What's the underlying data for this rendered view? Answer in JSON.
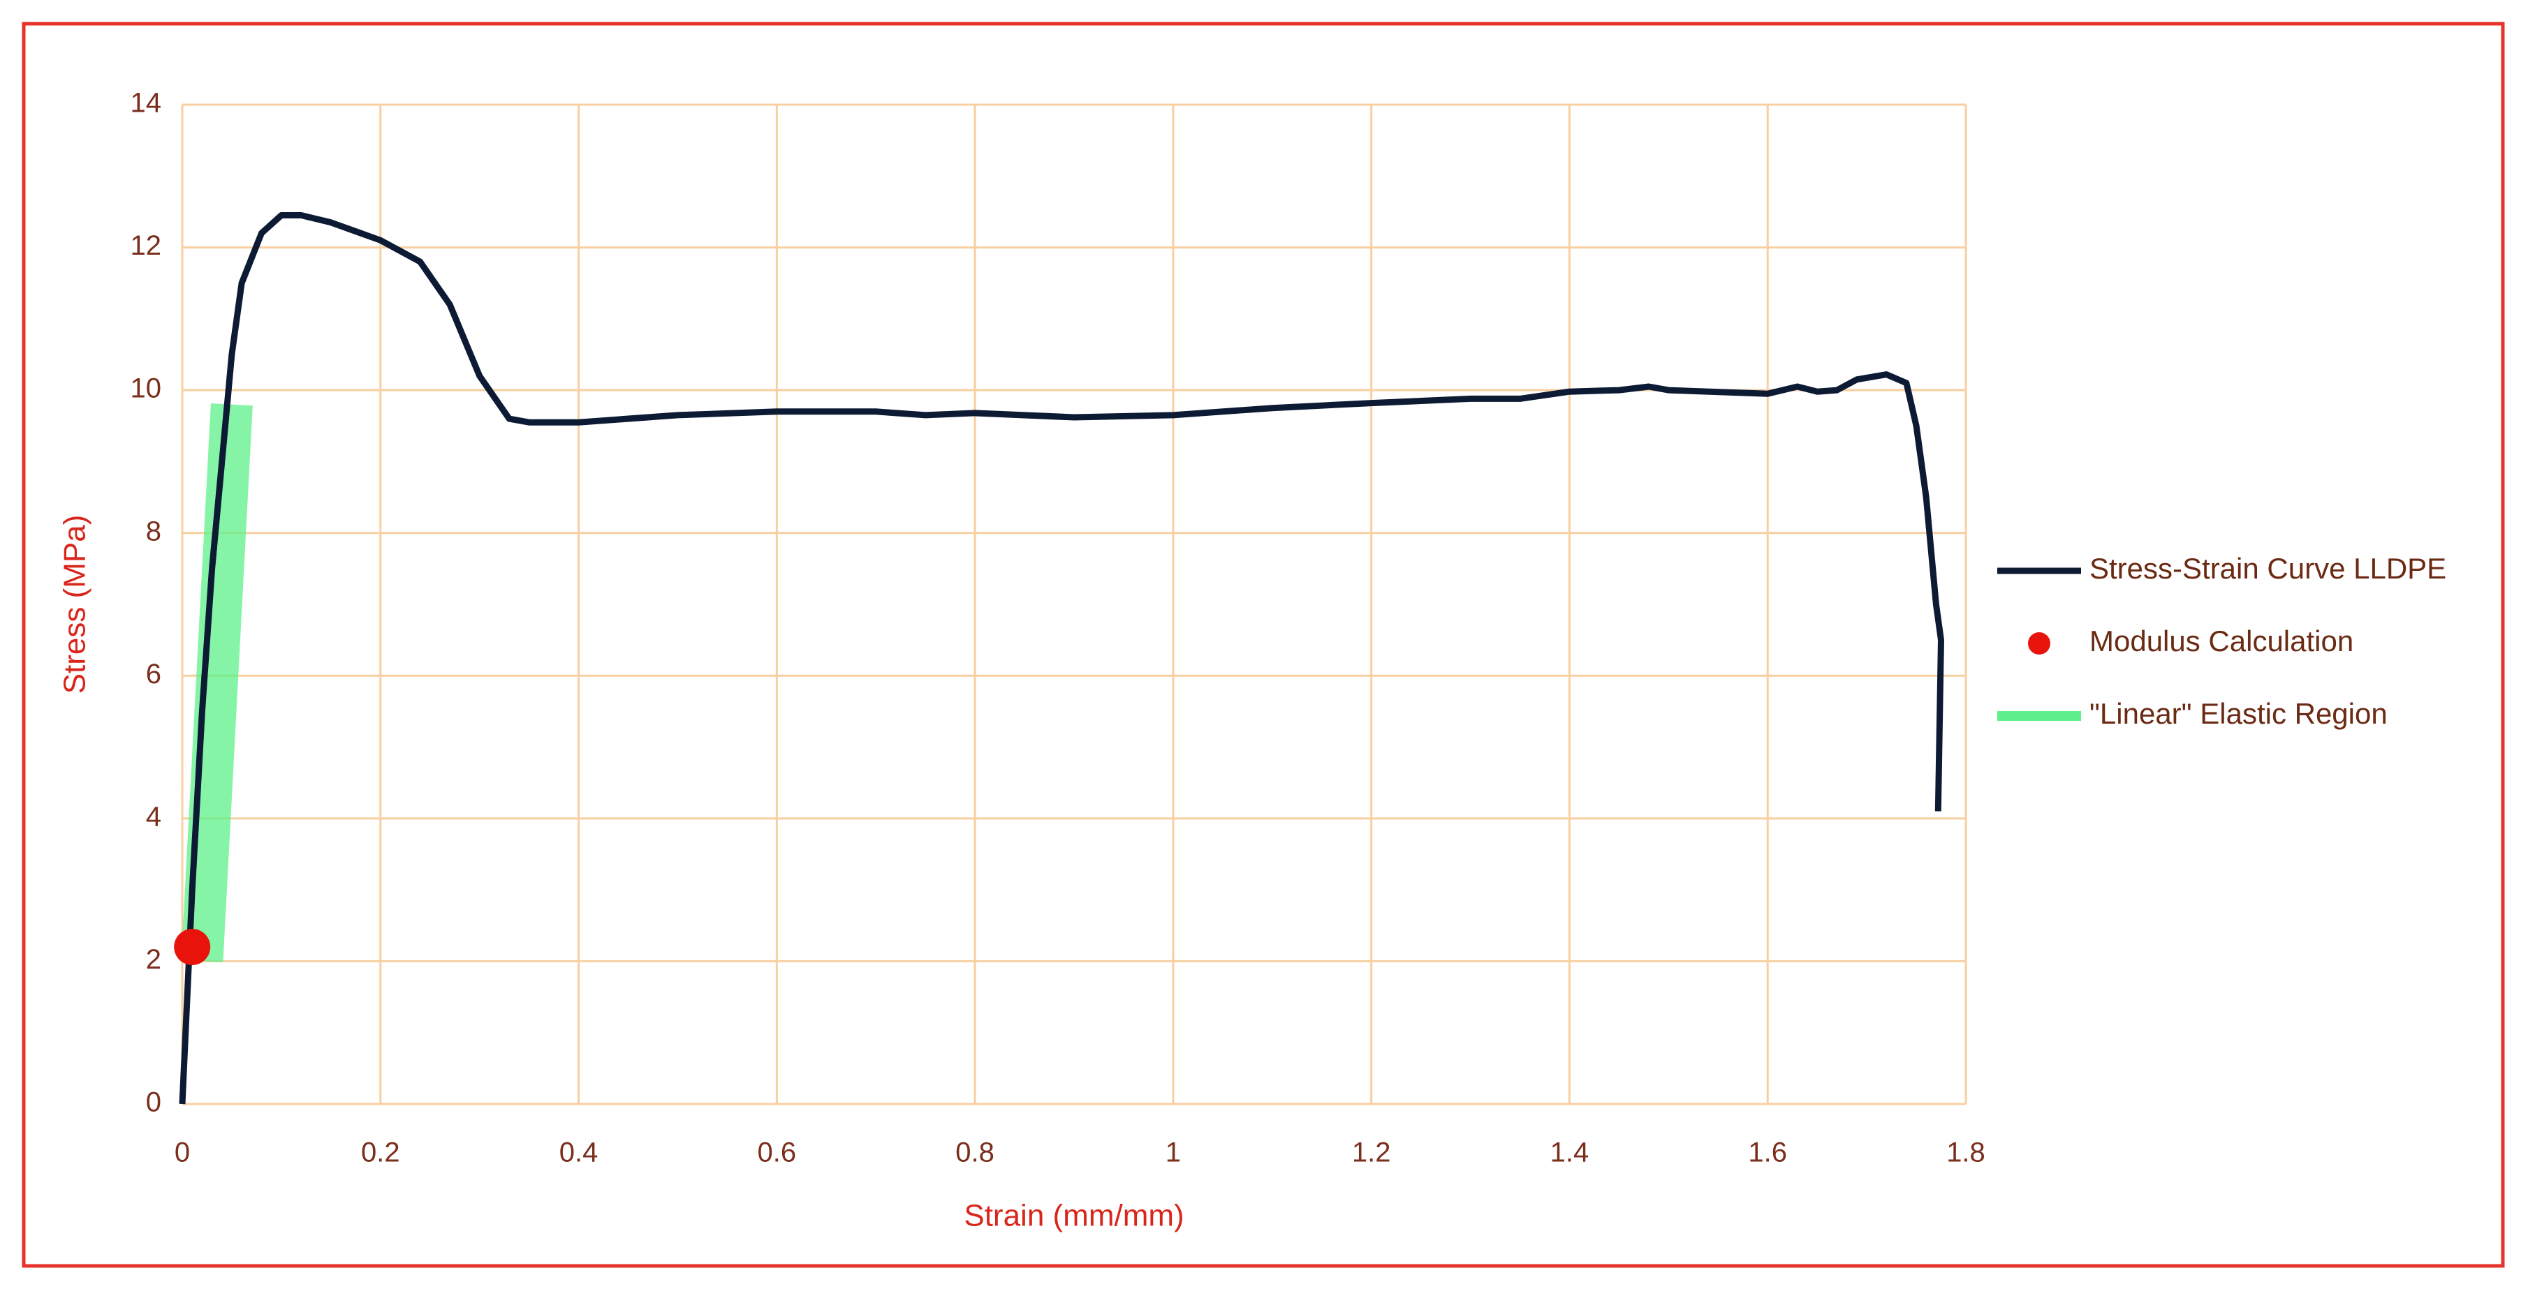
{
  "chart_data": {
    "type": "line",
    "x_label": "Strain (mm/mm)",
    "y_label": "Stress (MPa)",
    "xlim": [
      0,
      1.8
    ],
    "ylim": [
      0,
      14
    ],
    "xticks": [
      0,
      0.2,
      0.4,
      0.6,
      0.8,
      1,
      1.2,
      1.4,
      1.6,
      1.8
    ],
    "yticks": [
      0,
      2,
      4,
      6,
      8,
      10,
      12,
      14
    ],
    "grid": true,
    "grid_color": "#f8cfa0",
    "legend": "right",
    "series": [
      {
        "name": "Stress-Strain Curve LLDPE",
        "type": "line",
        "color": "#0d1a33",
        "x": [
          0,
          0.005,
          0.01,
          0.02,
          0.03,
          0.04,
          0.05,
          0.06,
          0.08,
          0.1,
          0.12,
          0.15,
          0.2,
          0.24,
          0.27,
          0.3,
          0.33,
          0.35,
          0.4,
          0.5,
          0.6,
          0.7,
          0.75,
          0.8,
          0.9,
          1.0,
          1.1,
          1.2,
          1.3,
          1.35,
          1.4,
          1.45,
          1.48,
          1.5,
          1.6,
          1.63,
          1.65,
          1.67,
          1.69,
          1.72,
          1.74,
          1.75,
          1.76,
          1.77,
          1.775,
          1.772
        ],
        "values": [
          0,
          1.5,
          3,
          5.5,
          7.5,
          9,
          10.5,
          11.5,
          12.2,
          12.45,
          12.45,
          12.35,
          12.1,
          11.8,
          11.2,
          10.2,
          9.6,
          9.55,
          9.55,
          9.65,
          9.7,
          9.7,
          9.65,
          9.68,
          9.62,
          9.65,
          9.75,
          9.82,
          9.88,
          9.88,
          9.98,
          10.0,
          10.05,
          10.0,
          9.95,
          10.05,
          9.98,
          10.0,
          10.15,
          10.22,
          10.1,
          9.5,
          8.5,
          7.0,
          6.5,
          4.1
        ]
      },
      {
        "name": "Modulus Calculation",
        "type": "scatter",
        "color": "#e8140c",
        "x": [
          0.01
        ],
        "values": [
          2.2
        ]
      },
      {
        "name": "\"Linear\" Elastic Region",
        "type": "band",
        "color": "#5ef08a",
        "x": [
          0.02,
          0.05
        ],
        "values": [
          2,
          9.8
        ]
      }
    ]
  }
}
